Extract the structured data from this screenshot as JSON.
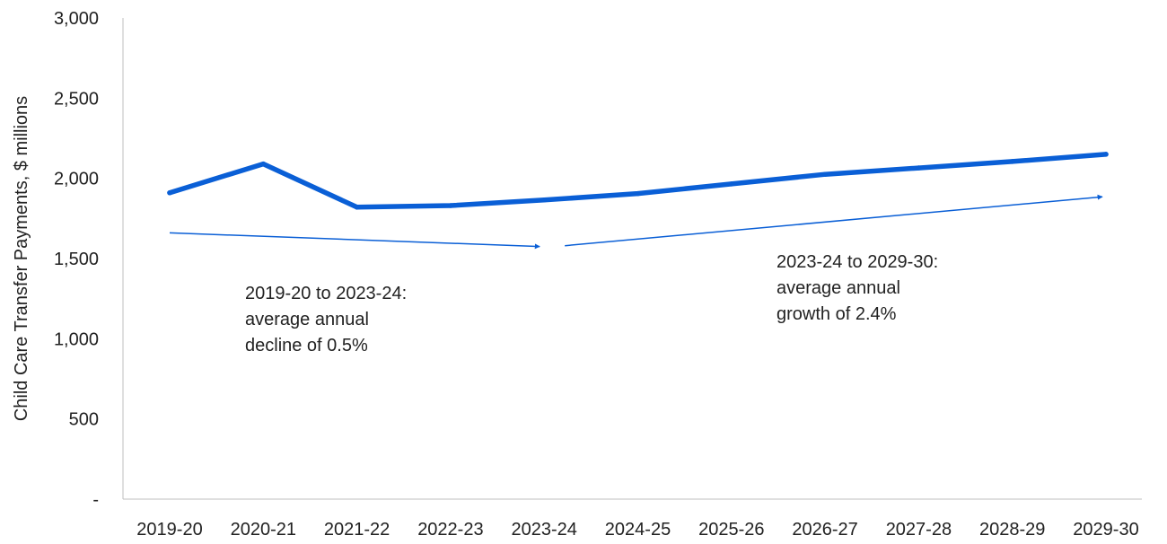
{
  "chart_data": {
    "type": "line",
    "ylabel": "Child Care Transfer Payments, $ millions",
    "xlabel": "",
    "categories": [
      "2019-20",
      "2020-21",
      "2021-22",
      "2022-23",
      "2023-24",
      "2024-25",
      "2025-26",
      "2026-27",
      "2027-28",
      "2028-29",
      "2029-30"
    ],
    "series": [
      {
        "values": [
          1910,
          2090,
          1820,
          1830,
          1865,
          1905,
          1965,
          2025,
          2065,
          2105,
          2150
        ]
      }
    ],
    "ylim": [
      0,
      3000
    ],
    "yticks": [
      {
        "value": 0,
        "label": "-"
      },
      {
        "value": 500,
        "label": "500"
      },
      {
        "value": 1000,
        "label": "1,000"
      },
      {
        "value": 1500,
        "label": "1,500"
      },
      {
        "value": 2000,
        "label": "2,000"
      },
      {
        "value": 2500,
        "label": "2,500"
      },
      {
        "value": 3000,
        "label": "3,000"
      }
    ],
    "grid": false,
    "line_color": "#0a5fd6",
    "annotations": [
      {
        "lines": [
          "2019-20 to 2023-24:",
          "average annual",
          "decline of 0.5%"
        ],
        "arrow": {
          "from": {
            "x": "2019-20",
            "y": 1660
          },
          "to": {
            "x": "2023-24",
            "y": 1575
          }
        }
      },
      {
        "lines": [
          "2023-24 to 2029-30:",
          "average annual",
          "growth of 2.4%"
        ],
        "arrow": {
          "from": {
            "x": "2023-24",
            "y": 1580
          },
          "to": {
            "x": "2029-30",
            "y": 1885
          }
        }
      }
    ]
  }
}
